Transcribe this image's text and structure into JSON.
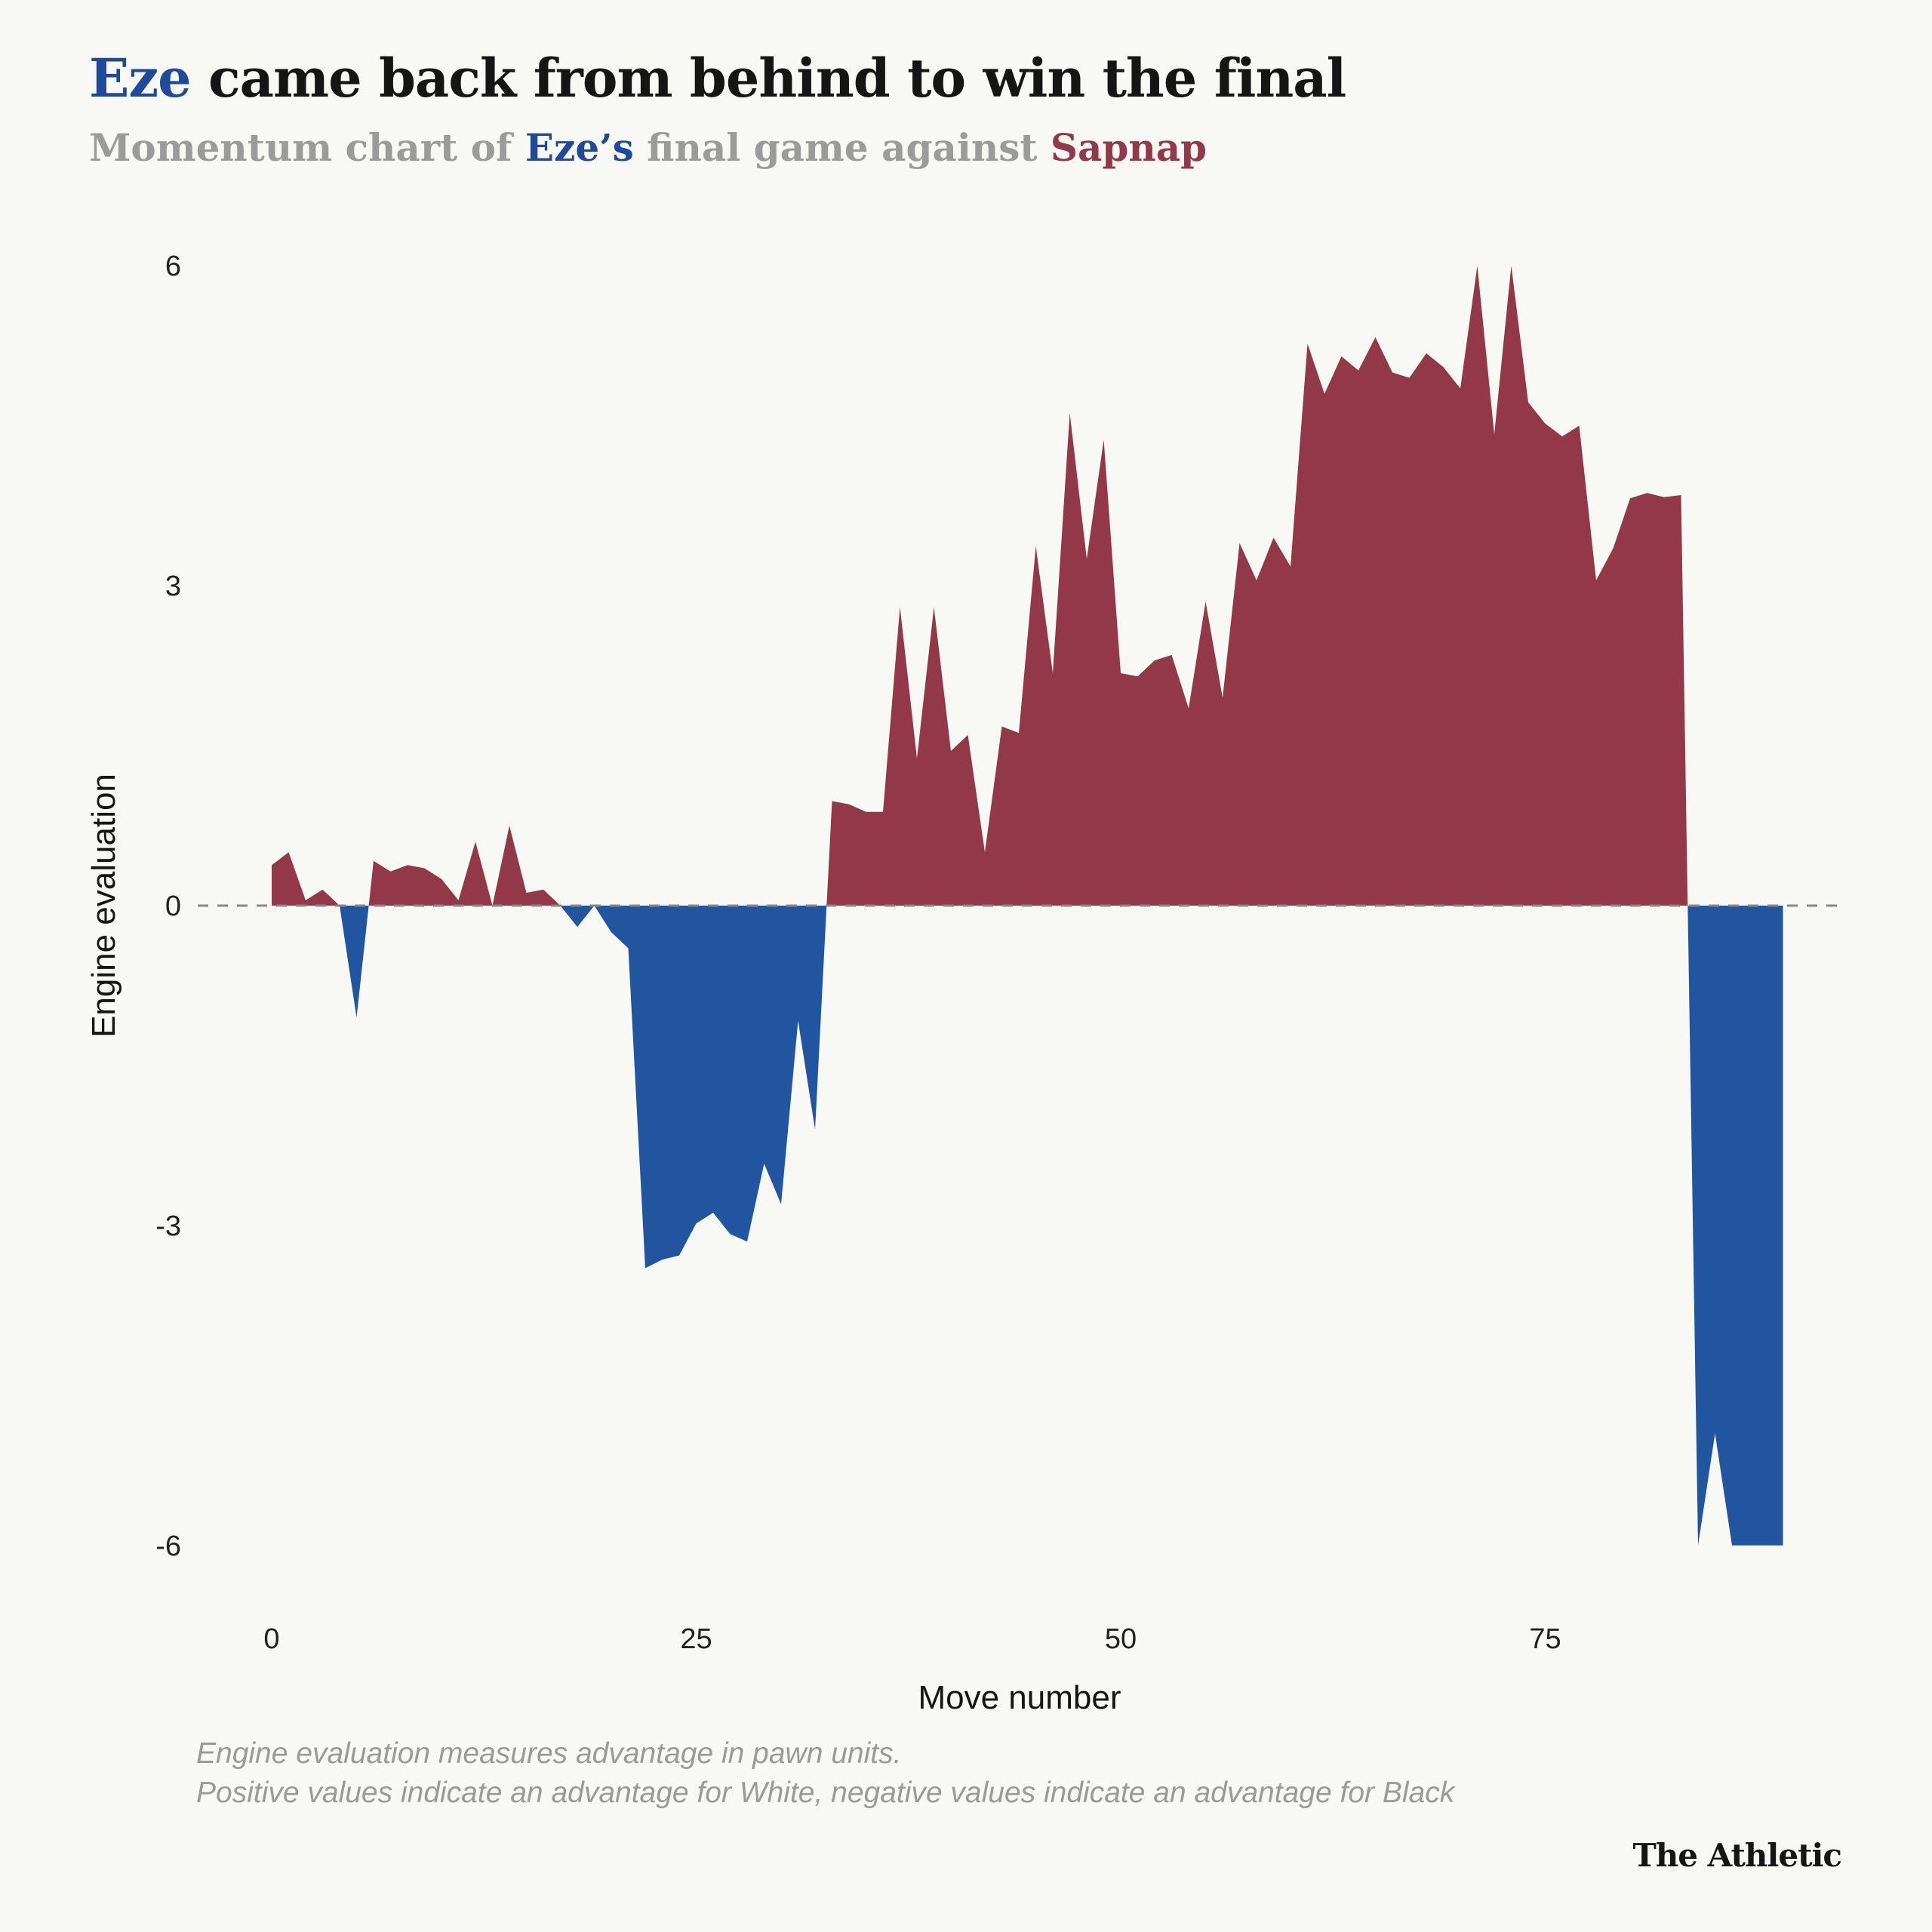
{
  "title": {
    "lead": "Eze",
    "rest": " came back from behind to win the final"
  },
  "subtitle": {
    "part1": "Momentum chart of ",
    "eze": "Eze’s",
    "part2": " final game against ",
    "sapnap": "Sapnap"
  },
  "colors": {
    "positive": "#933848",
    "negative": "#2255a0",
    "zero_line": "#888888",
    "eze": "#1e4a99",
    "sapnap": "#933848"
  },
  "chart_data": {
    "type": "area",
    "xlabel": "Move number",
    "ylabel": "Engine evaluation",
    "xlim": [
      0,
      92
    ],
    "ylim": [
      -6,
      6
    ],
    "x_ticks": [
      0,
      25,
      50,
      75
    ],
    "y_ticks": [
      6,
      3,
      0,
      -3,
      -6
    ],
    "zero_line": "dashed",
    "grid": false,
    "x_step": 1,
    "values": [
      0.38,
      0.5,
      0.05,
      0.15,
      0.0,
      -1.05,
      0.42,
      0.32,
      0.38,
      0.35,
      0.25,
      0.05,
      0.6,
      0.0,
      0.75,
      0.12,
      0.15,
      0.0,
      -0.2,
      0.0,
      -0.25,
      -0.4,
      -3.4,
      -3.32,
      -3.28,
      -2.98,
      -2.88,
      -3.08,
      -3.15,
      -2.42,
      -2.8,
      -1.08,
      -2.1,
      0.98,
      0.95,
      0.88,
      0.88,
      2.8,
      1.38,
      2.8,
      1.45,
      1.6,
      0.5,
      1.68,
      1.62,
      3.37,
      2.18,
      4.62,
      3.25,
      4.37,
      2.18,
      2.15,
      2.3,
      2.35,
      1.85,
      2.85,
      1.95,
      3.4,
      3.05,
      3.45,
      3.18,
      5.27,
      4.8,
      5.15,
      5.02,
      5.33,
      5.0,
      4.95,
      5.18,
      5.05,
      4.85,
      6.0,
      4.42,
      6.0,
      4.72,
      4.52,
      4.4,
      4.5,
      3.05,
      3.35,
      3.82,
      3.87,
      3.83,
      3.85,
      -6.0,
      -4.95,
      -6.0,
      -6.0,
      -6.0,
      -6.0
    ]
  },
  "footnote": {
    "line1": "Engine evaluation measures advantage in pawn units.",
    "line2": "Positive values indicate an advantage for White, negative values indicate an advantage for Black"
  },
  "brand": "The Athletic"
}
